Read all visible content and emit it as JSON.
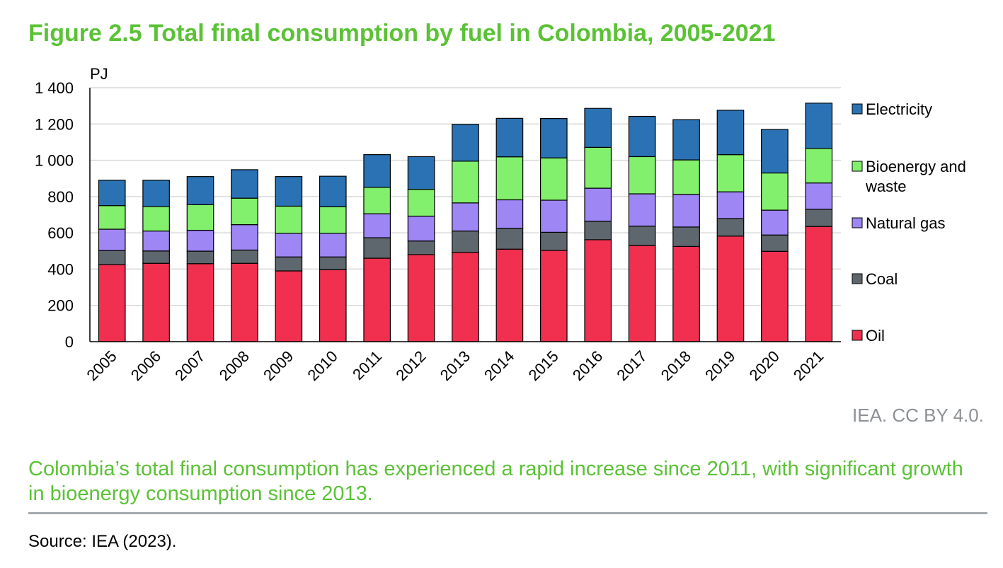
{
  "title": "Figure 2.5 Total final consumption by fuel in Colombia, 2005-2021",
  "credit": "IEA. CC BY 4.0.",
  "caption": "Colombia’s total final consumption has experienced a rapid increase since 2011, with significant growth in bioenergy consumption since 2013.",
  "source": "Source: IEA (2023).",
  "chart_data": {
    "type": "bar",
    "stacked": true,
    "ylabel": "PJ",
    "xlabel": "",
    "ylim": [
      0,
      1400
    ],
    "yticks": [
      0,
      200,
      400,
      600,
      800,
      1000,
      1200,
      1400
    ],
    "ytick_labels": [
      "0",
      "200",
      "400",
      "600",
      "800",
      "1 000",
      "1 200",
      "1 400"
    ],
    "grid": true,
    "legend_position": "right",
    "categories": [
      "2005",
      "2006",
      "2007",
      "2008",
      "2009",
      "2010",
      "2011",
      "2012",
      "2013",
      "2014",
      "2015",
      "2016",
      "2017",
      "2018",
      "2019",
      "2020",
      "2021"
    ],
    "series": [
      {
        "name": "Oil",
        "color": "#f0304e",
        "values": [
          425,
          432,
          430,
          432,
          390,
          397,
          460,
          480,
          492,
          510,
          503,
          562,
          530,
          525,
          582,
          498,
          635
        ]
      },
      {
        "name": "Coal",
        "color": "#5f676e",
        "values": [
          77,
          68,
          69,
          73,
          77,
          70,
          113,
          75,
          118,
          115,
          100,
          102,
          107,
          107,
          97,
          90,
          95
        ]
      },
      {
        "name": "Natural gas",
        "color": "#9e86f5",
        "values": [
          118,
          110,
          115,
          140,
          130,
          130,
          132,
          137,
          155,
          157,
          177,
          182,
          178,
          180,
          147,
          137,
          145
        ]
      },
      {
        "name": "Bioenergy and waste",
        "color": "#82f06c",
        "values": [
          130,
          135,
          141,
          146,
          150,
          147,
          146,
          148,
          230,
          237,
          233,
          225,
          205,
          190,
          205,
          205,
          190
        ]
      },
      {
        "name": "Electricity",
        "color": "#2a72b3",
        "values": [
          140,
          145,
          155,
          157,
          163,
          168,
          180,
          180,
          203,
          212,
          217,
          215,
          222,
          222,
          245,
          240,
          250
        ]
      }
    ],
    "legend_order": [
      "Electricity",
      "Bioenergy and waste",
      "Natural gas",
      "Coal",
      "Oil"
    ]
  }
}
